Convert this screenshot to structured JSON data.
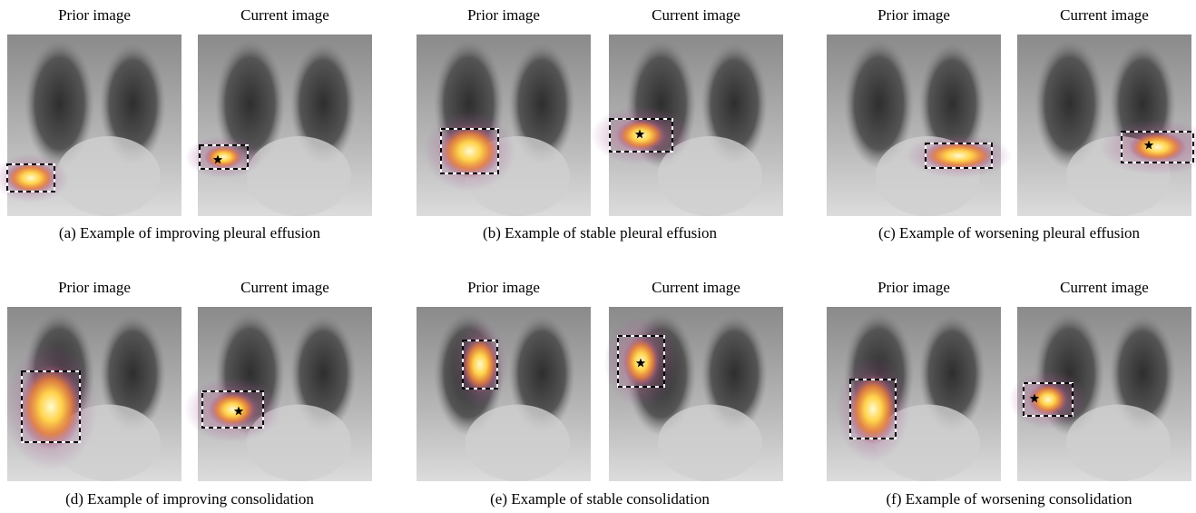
{
  "panels": [
    {
      "prior_label": "Prior image",
      "current_label": "Current image",
      "caption": "(a) Example of improving pleural effusion"
    },
    {
      "prior_label": "Prior image",
      "current_label": "Current image",
      "caption": "(b) Example of stable pleural effusion"
    },
    {
      "prior_label": "Prior image",
      "current_label": "Current image",
      "caption": "(c) Example of worsening pleural effusion"
    },
    {
      "prior_label": "Prior image",
      "current_label": "Current image",
      "caption": "(d) Example of improving consolidation"
    },
    {
      "prior_label": "Prior image",
      "current_label": "Current image",
      "caption": "(e) Example of stable consolidation"
    },
    {
      "prior_label": "Prior image",
      "current_label": "Current image",
      "caption": "(f) Example of worsening consolidation"
    }
  ]
}
